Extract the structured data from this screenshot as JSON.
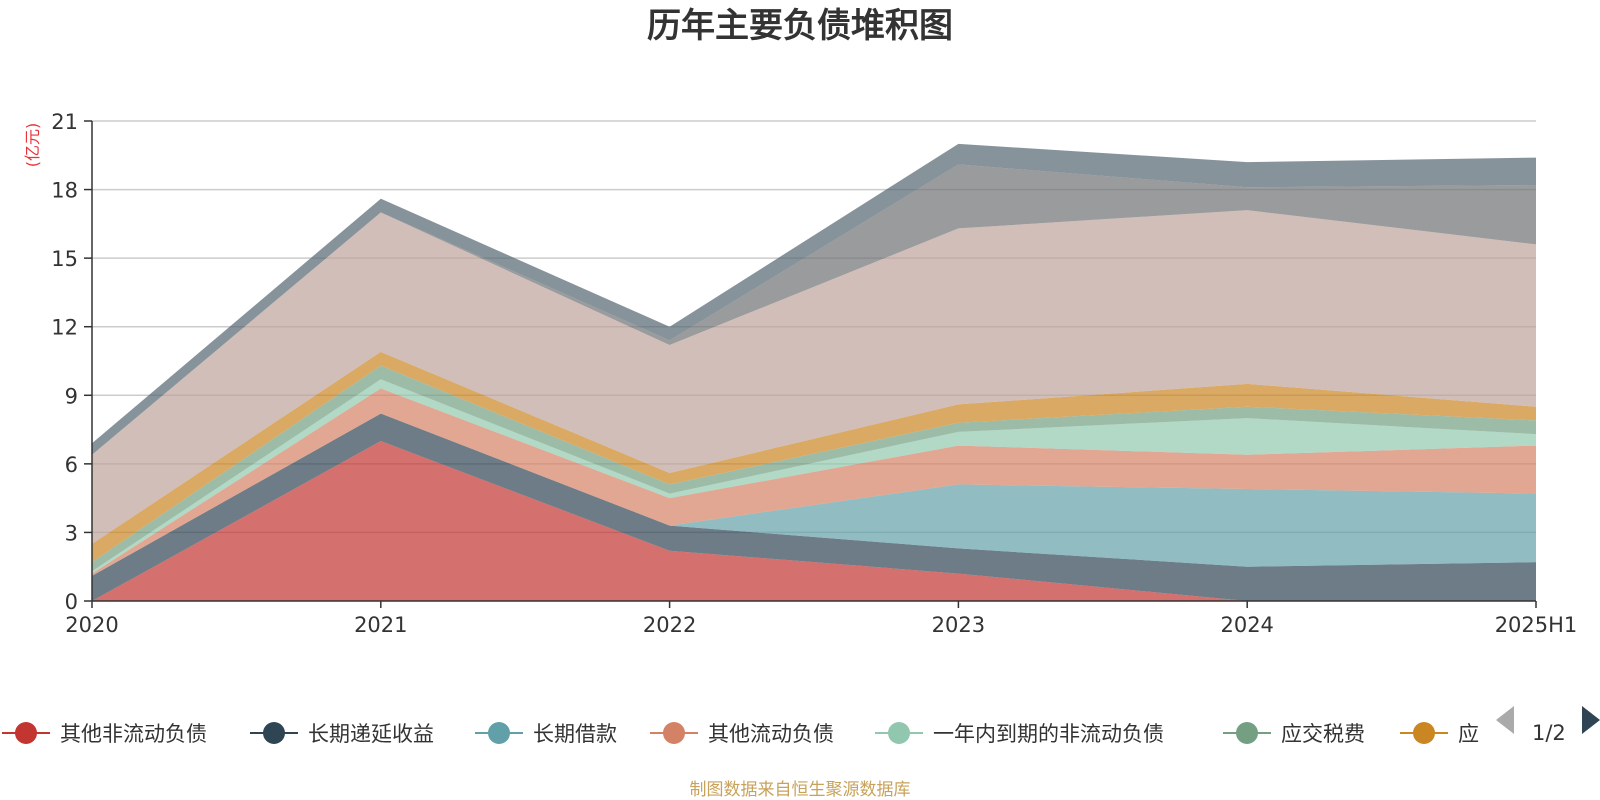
{
  "chart_data": {
    "type": "area",
    "stacked": true,
    "title": "历年主要负债堆积图",
    "ylabel": "(亿元)",
    "source": "制图数据来自恒生聚源数据库",
    "categories": [
      "2020",
      "2021",
      "2022",
      "2023",
      "2024",
      "2025H1"
    ],
    "ylim": [
      0,
      21
    ],
    "yticks": [
      0,
      3,
      6,
      9,
      12,
      15,
      18,
      21
    ],
    "grid": true,
    "legend_position": "bottom",
    "series": [
      {
        "name": "其他非流动负债",
        "color": "#c23531",
        "values": [
          0.0,
          7.0,
          2.2,
          1.2,
          0.0,
          0.0
        ]
      },
      {
        "name": "长期递延收益",
        "color": "#2f4554",
        "values": [
          1.1,
          1.2,
          1.1,
          1.1,
          1.5,
          1.7
        ]
      },
      {
        "name": "长期借款",
        "color": "#61a0a8",
        "values": [
          0.0,
          0.0,
          0.0,
          2.8,
          3.4,
          3.0
        ]
      },
      {
        "name": "其他流动负债",
        "color": "#d48265",
        "values": [
          0.1,
          1.1,
          1.2,
          1.7,
          1.5,
          2.1
        ]
      },
      {
        "name": "一年内到期的非流动负债",
        "color": "#91c7ae",
        "values": [
          0.1,
          0.4,
          0.2,
          0.6,
          1.6,
          0.5
        ]
      },
      {
        "name": "应交税费",
        "color": "#749f83",
        "values": [
          0.4,
          0.6,
          0.4,
          0.4,
          0.5,
          0.6
        ]
      },
      {
        "name": "应",
        "color": "#ca8622",
        "values": [
          0.8,
          0.6,
          0.5,
          0.8,
          1.0,
          0.6
        ]
      },
      {
        "name": "",
        "color": "#bda29a",
        "values": [
          3.9,
          6.1,
          5.6,
          7.7,
          7.6,
          7.1
        ]
      },
      {
        "name": "",
        "color": "#6e7074",
        "values": [
          0.0,
          0.0,
          0.2,
          2.8,
          1.0,
          2.6
        ]
      },
      {
        "name": "",
        "color": "#546570",
        "values": [
          0.5,
          0.6,
          0.6,
          0.9,
          1.1,
          1.2
        ]
      }
    ],
    "legend_page": "1/2"
  }
}
